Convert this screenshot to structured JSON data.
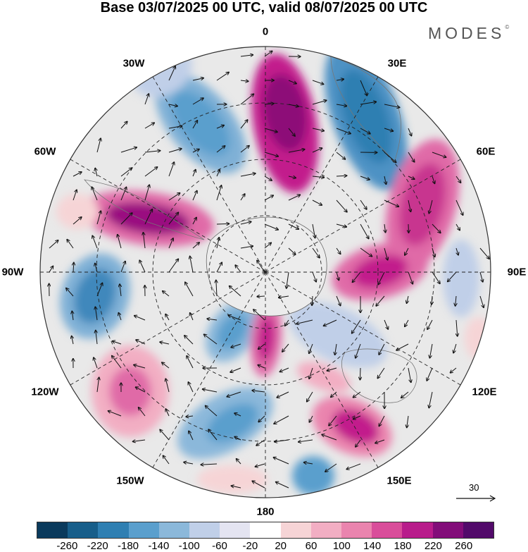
{
  "header": {
    "title": "Base 03/07/2025 00 UTC, valid 08/07/2025 00 UTC",
    "brand": "MODES",
    "brand_mark": "©"
  },
  "map": {
    "projection": "south polar stereographic",
    "longitude_labels": {
      "l0": "0",
      "l30e": "30E",
      "l60e": "60E",
      "l90e": "90E",
      "l120e": "120E",
      "l150e": "150E",
      "l180": "180",
      "l150w": "150W",
      "l120w": "120W",
      "l90w": "90W",
      "l60w": "60W",
      "l30w": "30W"
    },
    "vector_reference": "30",
    "colors": {
      "land": "#e9e9e9",
      "grid": "#222222",
      "coast": "#555555"
    }
  },
  "colorbar": {
    "ticks": [
      "-260",
      "-220",
      "-180",
      "-140",
      "-100",
      "-60",
      "-20",
      "20",
      "60",
      "100",
      "140",
      "180",
      "220",
      "260"
    ],
    "colors": [
      "#0a3a5c",
      "#175e8a",
      "#2f7fb2",
      "#5a9fcd",
      "#8bb8da",
      "#c0cfe8",
      "#e4e4f1",
      "#ffffff",
      "#f6d4d6",
      "#f2aec3",
      "#ea84ae",
      "#d94d9a",
      "#b81c8b",
      "#820d79",
      "#520a6a"
    ]
  }
}
